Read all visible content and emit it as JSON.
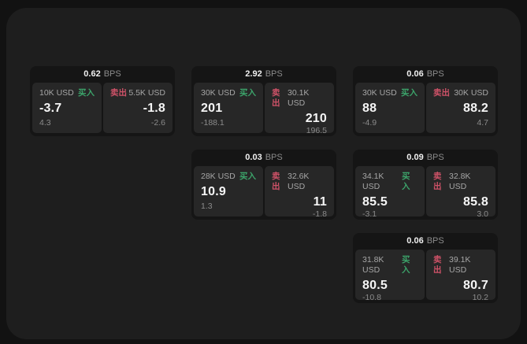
{
  "labels": {
    "buy": "买入",
    "sell": "卖出",
    "bps_unit": "BPS"
  },
  "colors": {
    "outer_bg": "#121212",
    "panel_bg": "#1e1e1e",
    "card_bg": "#151515",
    "tile_bg": "#272727",
    "buy_green": "#3ca36a",
    "sell_red": "#cf5268",
    "price_text": "#f5f5f5",
    "label_text": "#a6a6a6",
    "sub_text": "#8b8b8b"
  },
  "cards": [
    {
      "bps": "0.62",
      "buy": {
        "size": "10K USD",
        "price": "-3.7",
        "sub": "4.3"
      },
      "sell": {
        "size": "5.5K USD",
        "price": "-1.8",
        "sub": "-2.6"
      }
    },
    {
      "bps": "2.92",
      "buy": {
        "size": "30K USD",
        "price": "201",
        "sub": "-188.1"
      },
      "sell": {
        "size": "30.1K USD",
        "price": "210",
        "sub": "196.5"
      }
    },
    {
      "bps": "0.06",
      "buy": {
        "size": "30K USD",
        "price": "88",
        "sub": "-4.9"
      },
      "sell": {
        "size": "30K USD",
        "price": "88.2",
        "sub": "4.7"
      }
    },
    {
      "bps": "0.03",
      "buy": {
        "size": "28K USD",
        "price": "10.9",
        "sub": "1.3"
      },
      "sell": {
        "size": "32.6K USD",
        "price": "11",
        "sub": "-1.8"
      }
    },
    {
      "bps": "0.09",
      "buy": {
        "size": "34.1K USD",
        "price": "85.5",
        "sub": "-3.1"
      },
      "sell": {
        "size": "32.8K USD",
        "price": "85.8",
        "sub": "3.0"
      }
    },
    {
      "bps": "0.06",
      "buy": {
        "size": "31.8K USD",
        "price": "80.5",
        "sub": "-10.8"
      },
      "sell": {
        "size": "39.1K USD",
        "price": "80.7",
        "sub": "10.2"
      }
    }
  ]
}
